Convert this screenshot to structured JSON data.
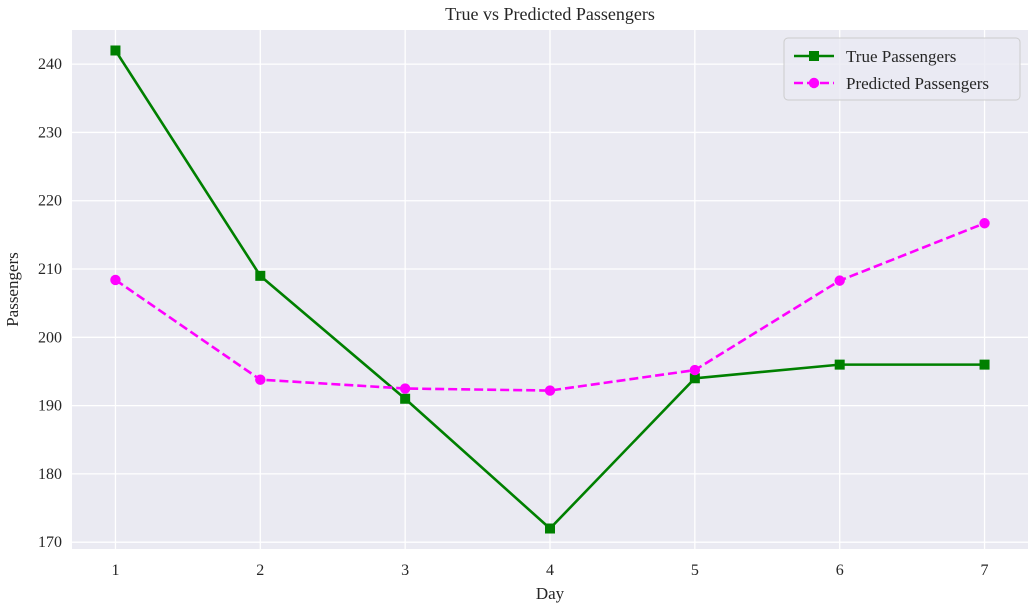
{
  "chart_data": {
    "type": "line",
    "title": "True vs Predicted Passengers",
    "xlabel": "Day",
    "ylabel": "Passengers",
    "x": [
      1,
      2,
      3,
      4,
      5,
      6,
      7
    ],
    "x_ticks": [
      "1",
      "2",
      "3",
      "4",
      "5",
      "6",
      "7"
    ],
    "y_ticks": [
      "170",
      "180",
      "190",
      "200",
      "210",
      "220",
      "230",
      "240"
    ],
    "xlim": [
      0.7,
      7.3
    ],
    "ylim": [
      169,
      245
    ],
    "grid": true,
    "legend_position": "upper right",
    "series": [
      {
        "name": "True Passengers",
        "values": [
          242,
          209,
          191,
          172,
          194,
          196,
          196
        ],
        "color": "#008000",
        "line_style": "solid",
        "marker": "square"
      },
      {
        "name": "Predicted Passengers",
        "values": [
          208.4,
          193.8,
          192.5,
          192.2,
          195.2,
          208.3,
          216.7
        ],
        "color": "#ff00ff",
        "line_style": "dashed",
        "marker": "circle"
      }
    ],
    "colors": {
      "plot_background": "#eaeaf2",
      "grid": "#ffffff",
      "text": "#262626"
    }
  }
}
